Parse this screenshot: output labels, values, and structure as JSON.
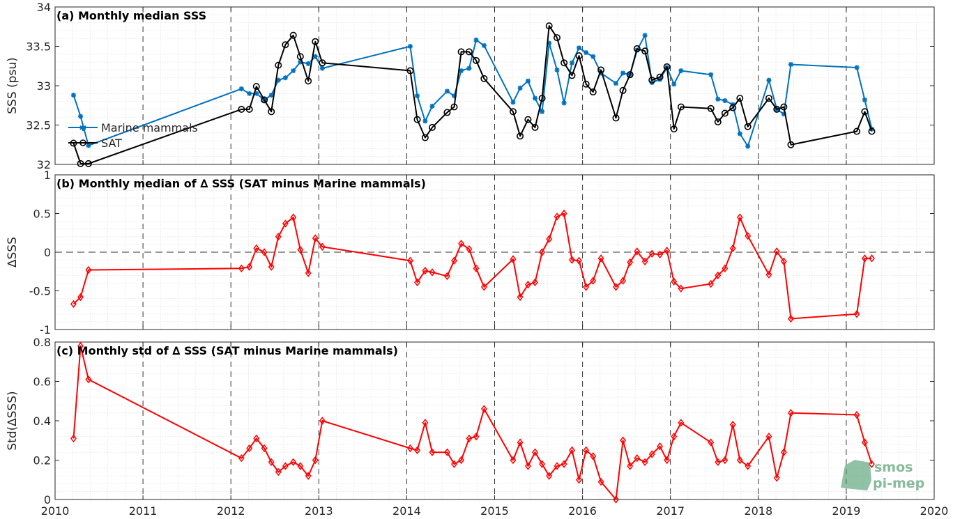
{
  "chart_data": [
    {
      "type": "line",
      "title": "(a) Monthly median SSS",
      "ylabel": "SSS (psu)",
      "xlim": [
        2010,
        2020
      ],
      "ylim": [
        32,
        34
      ],
      "xticks": [
        "2010",
        "2011",
        "2012",
        "2013",
        "2014",
        "2015",
        "2016",
        "2017",
        "2018",
        "2019",
        "2020"
      ],
      "yticks": [
        "32",
        "32.5",
        "33",
        "33.5",
        "34"
      ],
      "legend_placement": "left",
      "series": [
        {
          "name": "Marine mammals",
          "color": "#0072BD",
          "marker": "star",
          "x": [
            2010.21,
            2010.29,
            2010.38,
            2012.12,
            2012.21,
            2012.29,
            2012.38,
            2012.46,
            2012.54,
            2012.62,
            2012.71,
            2012.79,
            2012.88,
            2012.96,
            2013.04,
            2014.04,
            2014.12,
            2014.21,
            2014.29,
            2014.46,
            2014.54,
            2014.62,
            2014.71,
            2014.79,
            2014.88,
            2015.21,
            2015.29,
            2015.38,
            2015.46,
            2015.54,
            2015.62,
            2015.71,
            2015.79,
            2015.88,
            2015.96,
            2016.04,
            2016.12,
            2016.21,
            2016.38,
            2016.46,
            2016.54,
            2016.62,
            2016.71,
            2016.79,
            2016.88,
            2016.96,
            2017.04,
            2017.12,
            2017.46,
            2017.54,
            2017.62,
            2017.71,
            2017.79,
            2017.88,
            2018.12,
            2018.21,
            2018.29,
            2018.37,
            2019.12,
            2019.21,
            2019.29
          ],
          "y": [
            32.88,
            32.61,
            32.24,
            32.96,
            32.9,
            32.9,
            32.82,
            32.88,
            33.07,
            33.1,
            33.19,
            33.3,
            33.28,
            33.37,
            33.22,
            33.5,
            32.87,
            32.55,
            32.74,
            32.93,
            32.87,
            33.19,
            33.22,
            33.58,
            33.51,
            32.79,
            32.97,
            33.06,
            32.84,
            32.67,
            33.54,
            33.2,
            32.78,
            33.29,
            33.48,
            33.42,
            33.37,
            33.16,
            33.03,
            33.16,
            33.14,
            33.45,
            33.64,
            33.04,
            33.08,
            33.23,
            33.02,
            33.19,
            33.14,
            32.83,
            32.81,
            32.76,
            32.39,
            32.23,
            33.07,
            32.7,
            32.64,
            33.27,
            33.23,
            32.82,
            32.45
          ]
        },
        {
          "name": "SAT",
          "color": "#000000",
          "marker": "circle",
          "x": [
            2010.21,
            2010.29,
            2010.38,
            2012.12,
            2012.21,
            2012.29,
            2012.38,
            2012.46,
            2012.54,
            2012.62,
            2012.71,
            2012.79,
            2012.88,
            2012.96,
            2013.04,
            2014.04,
            2014.12,
            2014.21,
            2014.29,
            2014.46,
            2014.54,
            2014.62,
            2014.71,
            2014.79,
            2014.88,
            2015.21,
            2015.29,
            2015.38,
            2015.46,
            2015.54,
            2015.62,
            2015.71,
            2015.79,
            2015.88,
            2015.96,
            2016.04,
            2016.12,
            2016.21,
            2016.38,
            2016.46,
            2016.54,
            2016.62,
            2016.71,
            2016.79,
            2016.88,
            2016.96,
            2017.04,
            2017.12,
            2017.46,
            2017.54,
            2017.62,
            2017.71,
            2017.79,
            2017.88,
            2018.12,
            2018.21,
            2018.29,
            2018.37,
            2019.12,
            2019.21,
            2019.29
          ],
          "y": [
            32.27,
            32.01,
            32.01,
            32.7,
            32.7,
            32.99,
            32.82,
            32.67,
            33.26,
            33.52,
            33.64,
            33.37,
            33.06,
            33.56,
            33.29,
            33.19,
            32.57,
            32.34,
            32.47,
            32.66,
            32.73,
            33.43,
            33.43,
            33.32,
            33.09,
            32.67,
            32.36,
            32.57,
            32.47,
            32.84,
            33.76,
            33.61,
            33.29,
            33.13,
            33.38,
            33.02,
            32.92,
            33.2,
            32.59,
            32.94,
            33.14,
            33.47,
            33.44,
            33.07,
            33.11,
            33.24,
            32.45,
            32.73,
            32.71,
            32.54,
            32.65,
            32.72,
            32.84,
            32.48,
            32.84,
            32.7,
            32.73,
            32.25,
            32.42,
            32.67,
            32.42
          ]
        }
      ]
    },
    {
      "type": "line",
      "title": "(b) Monthly median of ∆ SSS (SAT minus Marine mammals)",
      "ylabel": "∆SSS",
      "xlim": [
        2010,
        2020
      ],
      "ylim": [
        -1,
        1
      ],
      "xticks": [
        "2010",
        "2011",
        "2012",
        "2013",
        "2014",
        "2015",
        "2016",
        "2017",
        "2018",
        "2019",
        "2020"
      ],
      "yticks": [
        "-1",
        "-0.5",
        "0",
        "0.5",
        "1"
      ],
      "zero_line": true,
      "series": [
        {
          "color": "#FF0000",
          "marker": "diamond",
          "x": [
            2010.21,
            2010.29,
            2010.38,
            2012.12,
            2012.21,
            2012.29,
            2012.38,
            2012.46,
            2012.54,
            2012.62,
            2012.71,
            2012.79,
            2012.88,
            2012.96,
            2013.04,
            2014.04,
            2014.12,
            2014.21,
            2014.29,
            2014.46,
            2014.54,
            2014.62,
            2014.71,
            2014.79,
            2014.88,
            2015.21,
            2015.29,
            2015.38,
            2015.46,
            2015.54,
            2015.62,
            2015.71,
            2015.79,
            2015.88,
            2015.96,
            2016.04,
            2016.12,
            2016.21,
            2016.38,
            2016.46,
            2016.54,
            2016.62,
            2016.71,
            2016.79,
            2016.88,
            2016.96,
            2017.04,
            2017.12,
            2017.46,
            2017.54,
            2017.62,
            2017.71,
            2017.79,
            2017.88,
            2018.12,
            2018.21,
            2018.29,
            2018.37,
            2019.12,
            2019.21,
            2019.29
          ],
          "y": [
            -0.67,
            -0.58,
            -0.23,
            -0.21,
            -0.19,
            0.05,
            0.0,
            -0.19,
            0.2,
            0.37,
            0.45,
            0.03,
            -0.27,
            0.18,
            0.07,
            -0.11,
            -0.39,
            -0.24,
            -0.26,
            -0.31,
            -0.11,
            0.11,
            0.04,
            -0.21,
            -0.45,
            -0.09,
            -0.58,
            -0.42,
            -0.39,
            0.0,
            0.17,
            0.46,
            0.5,
            -0.1,
            -0.11,
            -0.45,
            -0.37,
            -0.08,
            -0.45,
            -0.37,
            -0.13,
            0.01,
            -0.12,
            -0.02,
            -0.03,
            0.02,
            -0.38,
            -0.47,
            -0.41,
            -0.3,
            -0.21,
            0.05,
            0.45,
            0.21,
            -0.29,
            0.01,
            -0.12,
            -0.86,
            -0.8,
            -0.08,
            -0.08
          ]
        }
      ]
    },
    {
      "type": "line",
      "title": "(c) Monthly std of ∆ SSS (SAT minus Marine mammals)",
      "ylabel": "Std(∆SSS)",
      "xlim": [
        2010,
        2020
      ],
      "ylim": [
        0,
        0.8
      ],
      "xticks": [
        "2010",
        "2011",
        "2012",
        "2013",
        "2014",
        "2015",
        "2016",
        "2017",
        "2018",
        "2019",
        "2020"
      ],
      "yticks": [
        "0",
        "0.2",
        "0.4",
        "0.6",
        "0.8"
      ],
      "series": [
        {
          "color": "#FF0000",
          "marker": "diamond",
          "x": [
            2010.21,
            2010.29,
            2010.38,
            2012.12,
            2012.21,
            2012.29,
            2012.38,
            2012.46,
            2012.54,
            2012.62,
            2012.71,
            2012.79,
            2012.88,
            2012.96,
            2013.04,
            2014.04,
            2014.12,
            2014.21,
            2014.29,
            2014.46,
            2014.54,
            2014.62,
            2014.71,
            2014.79,
            2014.88,
            2015.21,
            2015.29,
            2015.38,
            2015.46,
            2015.54,
            2015.62,
            2015.71,
            2015.79,
            2015.88,
            2015.96,
            2016.04,
            2016.12,
            2016.21,
            2016.38,
            2016.46,
            2016.54,
            2016.62,
            2016.71,
            2016.79,
            2016.88,
            2016.96,
            2017.04,
            2017.12,
            2017.46,
            2017.54,
            2017.62,
            2017.71,
            2017.79,
            2017.88,
            2018.12,
            2018.21,
            2018.29,
            2018.37,
            2019.12,
            2019.21,
            2019.29
          ],
          "y": [
            0.31,
            0.78,
            0.61,
            0.21,
            0.26,
            0.31,
            0.26,
            0.19,
            0.14,
            0.17,
            0.19,
            0.17,
            0.12,
            0.2,
            0.4,
            0.26,
            0.25,
            0.39,
            0.24,
            0.24,
            0.18,
            0.2,
            0.31,
            0.32,
            0.46,
            0.2,
            0.29,
            0.17,
            0.24,
            0.18,
            0.12,
            0.17,
            0.18,
            0.25,
            0.1,
            0.25,
            0.22,
            0.09,
            0.0,
            0.3,
            0.17,
            0.21,
            0.19,
            0.23,
            0.27,
            0.2,
            0.32,
            0.39,
            0.29,
            0.19,
            0.2,
            0.38,
            0.2,
            0.17,
            0.32,
            0.11,
            0.24,
            0.44,
            0.43,
            0.29,
            0.18
          ]
        }
      ]
    }
  ],
  "legend": {
    "items": [
      "Marine mammals",
      "SAT"
    ]
  },
  "logo": {
    "line1": "smos",
    "line2": "pi-mep"
  }
}
